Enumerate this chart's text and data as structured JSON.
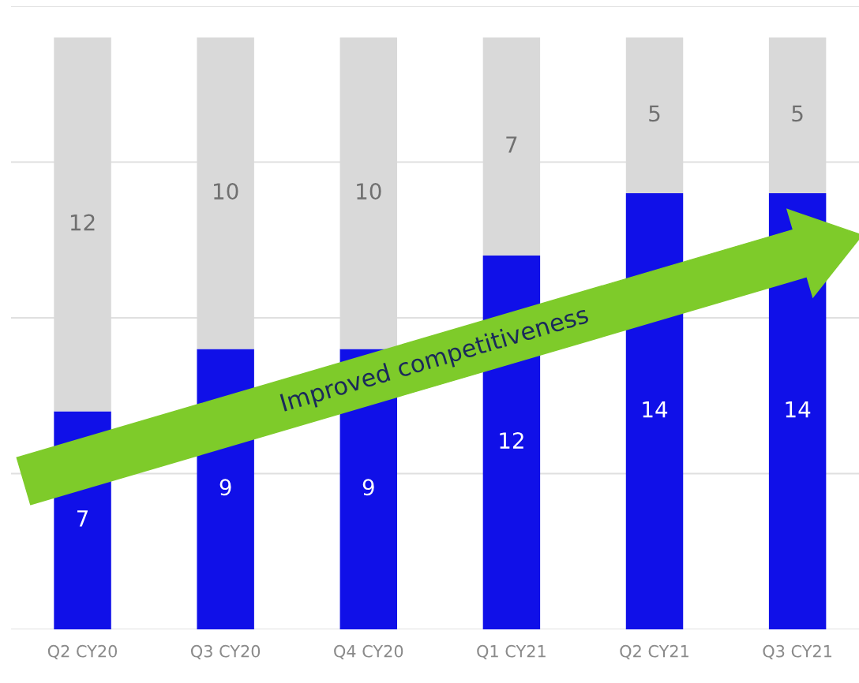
{
  "chart_data": {
    "type": "bar",
    "stacked": true,
    "categories": [
      "Q2 CY20",
      "Q3 CY20",
      "Q4 CY20",
      "Q1 CY21",
      "Q2 CY21",
      "Q3 CY21"
    ],
    "series": [
      {
        "color": "#1010e8",
        "values": [
          7,
          9,
          9,
          12,
          14,
          14
        ]
      },
      {
        "color": "#d9d9d9",
        "values": [
          12,
          10,
          10,
          7,
          5,
          5
        ]
      }
    ],
    "data_labels": true,
    "ylim": [
      0,
      20
    ],
    "yticks": [
      {
        "value": 0,
        "label": null
      },
      {
        "value": 5,
        "label": null
      },
      {
        "value": 10,
        "label": null
      },
      {
        "value": 15,
        "label": null
      },
      {
        "value": 20,
        "label": null
      }
    ],
    "tick_labels": "x",
    "grid": "y",
    "annotations": [
      "Improved competitiveness"
    ]
  }
}
